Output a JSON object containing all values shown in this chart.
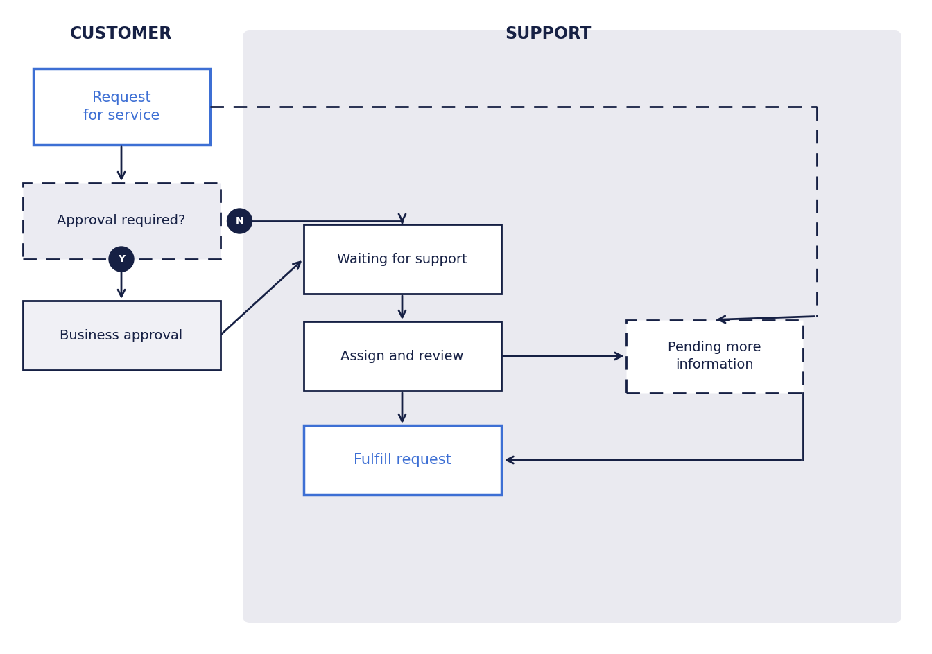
{
  "white_bg": "#ffffff",
  "dark_navy": "#162044",
  "blue_border": "#3d6fd4",
  "blue_text": "#3d6fd4",
  "support_bg": "#eaeaf0",
  "approval_bg": "#ebebf2",
  "business_bg": "#f0f0f5",
  "title_customer": "CUSTOMER",
  "title_support": "SUPPORT",
  "box_request": "Request\nfor service",
  "box_approval_q": "Approval required?",
  "box_business": "Business approval",
  "box_waiting": "Waiting for support",
  "box_assign": "Assign and review",
  "box_fulfill": "Fulfill request",
  "box_pending": "Pending more\ninformation",
  "label_N": "N",
  "label_Y": "Y"
}
